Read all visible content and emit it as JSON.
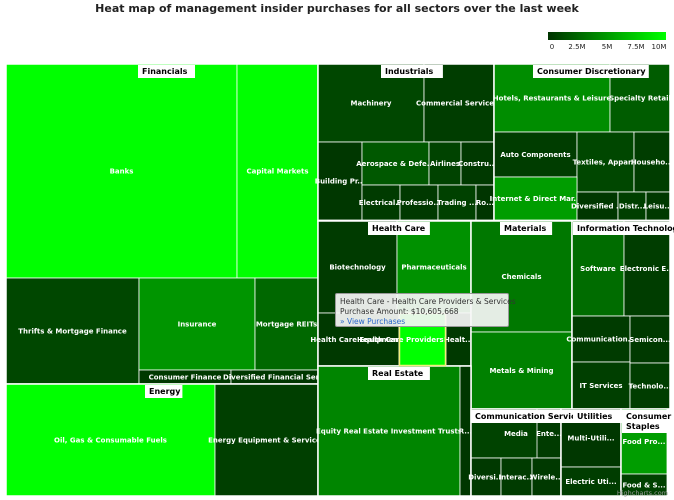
{
  "chart_data": {
    "type": "heatmap",
    "title": "Heat map of management insider purchases for all sectors over the last week",
    "colorAxis": {
      "min": 0,
      "max": 10000000,
      "minColor": "#003300",
      "maxColor": "#00ff00",
      "tick_labels": [
        "0",
        "2.5M",
        "5M",
        "7.5M",
        "10M"
      ]
    },
    "sectors": [
      {
        "name": "Financials",
        "industries": [
          {
            "name": "Banks",
            "value": 11000000
          },
          {
            "name": "Capital Markets",
            "value": 11000000
          },
          {
            "name": "Thrifts & Mortgage Finance",
            "value": 1000000
          },
          {
            "name": "Insurance",
            "value": 4800000
          },
          {
            "name": "Mortgage REITs",
            "value": 2600000
          },
          {
            "name": "Consumer Finance",
            "value": 300000
          },
          {
            "name": "Diversified Financial Ser...",
            "value": 200000
          }
        ]
      },
      {
        "name": "Industrials",
        "industries": [
          {
            "name": "Machinery",
            "value": 1000000
          },
          {
            "name": "Commercial Service...",
            "value": 500000
          },
          {
            "name": "Building Pr...",
            "value": 200000
          },
          {
            "name": "Aerospace & Defe...",
            "value": 1800000
          },
          {
            "name": "Airlines",
            "value": 800000
          },
          {
            "name": "Constru...",
            "value": 300000
          },
          {
            "name": "Electrical...",
            "value": 400000
          },
          {
            "name": "Professio...",
            "value": 300000
          },
          {
            "name": "Trading ...",
            "value": 700000
          },
          {
            "name": "Ro...",
            "value": 100000
          }
        ]
      },
      {
        "name": "Consumer Discretionary",
        "industries": [
          {
            "name": "Hotels, Restaurants & Leisure",
            "value": 4400000
          },
          {
            "name": "Specialty Retail",
            "value": 2000000
          },
          {
            "name": "Auto Components",
            "value": 500000
          },
          {
            "name": "Textiles, Appar...",
            "value": 1000000
          },
          {
            "name": "Househo...",
            "value": 500000
          },
          {
            "name": "Internet & Direct Mar...",
            "value": 5200000
          },
          {
            "name": "Diversified ...",
            "value": 200000
          },
          {
            "name": "Distr...",
            "value": 600000
          },
          {
            "name": "Leisu...",
            "value": 300000
          }
        ]
      },
      {
        "name": "Health Care",
        "industries": [
          {
            "name": "Biotechnology",
            "value": 400000
          },
          {
            "name": "Pharmaceuticals",
            "value": 4600000
          },
          {
            "name": "Health Care Equipmen...",
            "value": 300000
          },
          {
            "name": "Health Care Providers & Services",
            "value": 10605668
          },
          {
            "name": "Healt...",
            "value": 300000
          }
        ]
      },
      {
        "name": "Materials",
        "industries": [
          {
            "name": "Chemicals",
            "value": 3400000
          },
          {
            "name": "Metals & Mining",
            "value": 3800000
          }
        ]
      },
      {
        "name": "Information Technology",
        "industries": [
          {
            "name": "Software",
            "value": 2800000
          },
          {
            "name": "Electronic E...",
            "value": 500000
          },
          {
            "name": "Communication...",
            "value": 400000
          },
          {
            "name": "Semicon...",
            "value": 300000
          },
          {
            "name": "IT Services",
            "value": 600000
          },
          {
            "name": "Technolo...",
            "value": 500000
          }
        ]
      },
      {
        "name": "Energy",
        "industries": [
          {
            "name": "Oil, Gas & Consumable Fuels",
            "value": 11000000
          },
          {
            "name": "Energy Equipment & Services",
            "value": 600000
          }
        ]
      },
      {
        "name": "Real Estate",
        "industries": [
          {
            "name": "Equity Real Estate Investment Trusts",
            "value": 4000000
          },
          {
            "name": "R...",
            "value": 200000
          }
        ]
      },
      {
        "name": "Communication Services",
        "label": "Communication Servic...",
        "industries": [
          {
            "name": "Media",
            "value": 800000
          },
          {
            "name": "Ente...",
            "value": 400000
          },
          {
            "name": "Diversi...",
            "value": 300000
          },
          {
            "name": "Interac...",
            "value": 400000
          },
          {
            "name": "Wirele...",
            "value": 300000
          }
        ]
      },
      {
        "name": "Utilities",
        "industries": [
          {
            "name": "Multi-Utili...",
            "value": 200000
          },
          {
            "name": "Electric Uti...",
            "value": 500000
          }
        ]
      },
      {
        "name": "Consumer Staples",
        "label": "Consumer Staples",
        "industries": [
          {
            "name": "Food Pro...",
            "value": 5200000
          },
          {
            "name": "Food & S...",
            "value": 700000
          }
        ]
      }
    ]
  },
  "tooltip": {
    "title": "Health Care - Health Care Providers & Services",
    "amount_line": "Purchase Amount: $10,605,668",
    "link": "» View Purchases"
  },
  "credits": "Highcharts.com"
}
